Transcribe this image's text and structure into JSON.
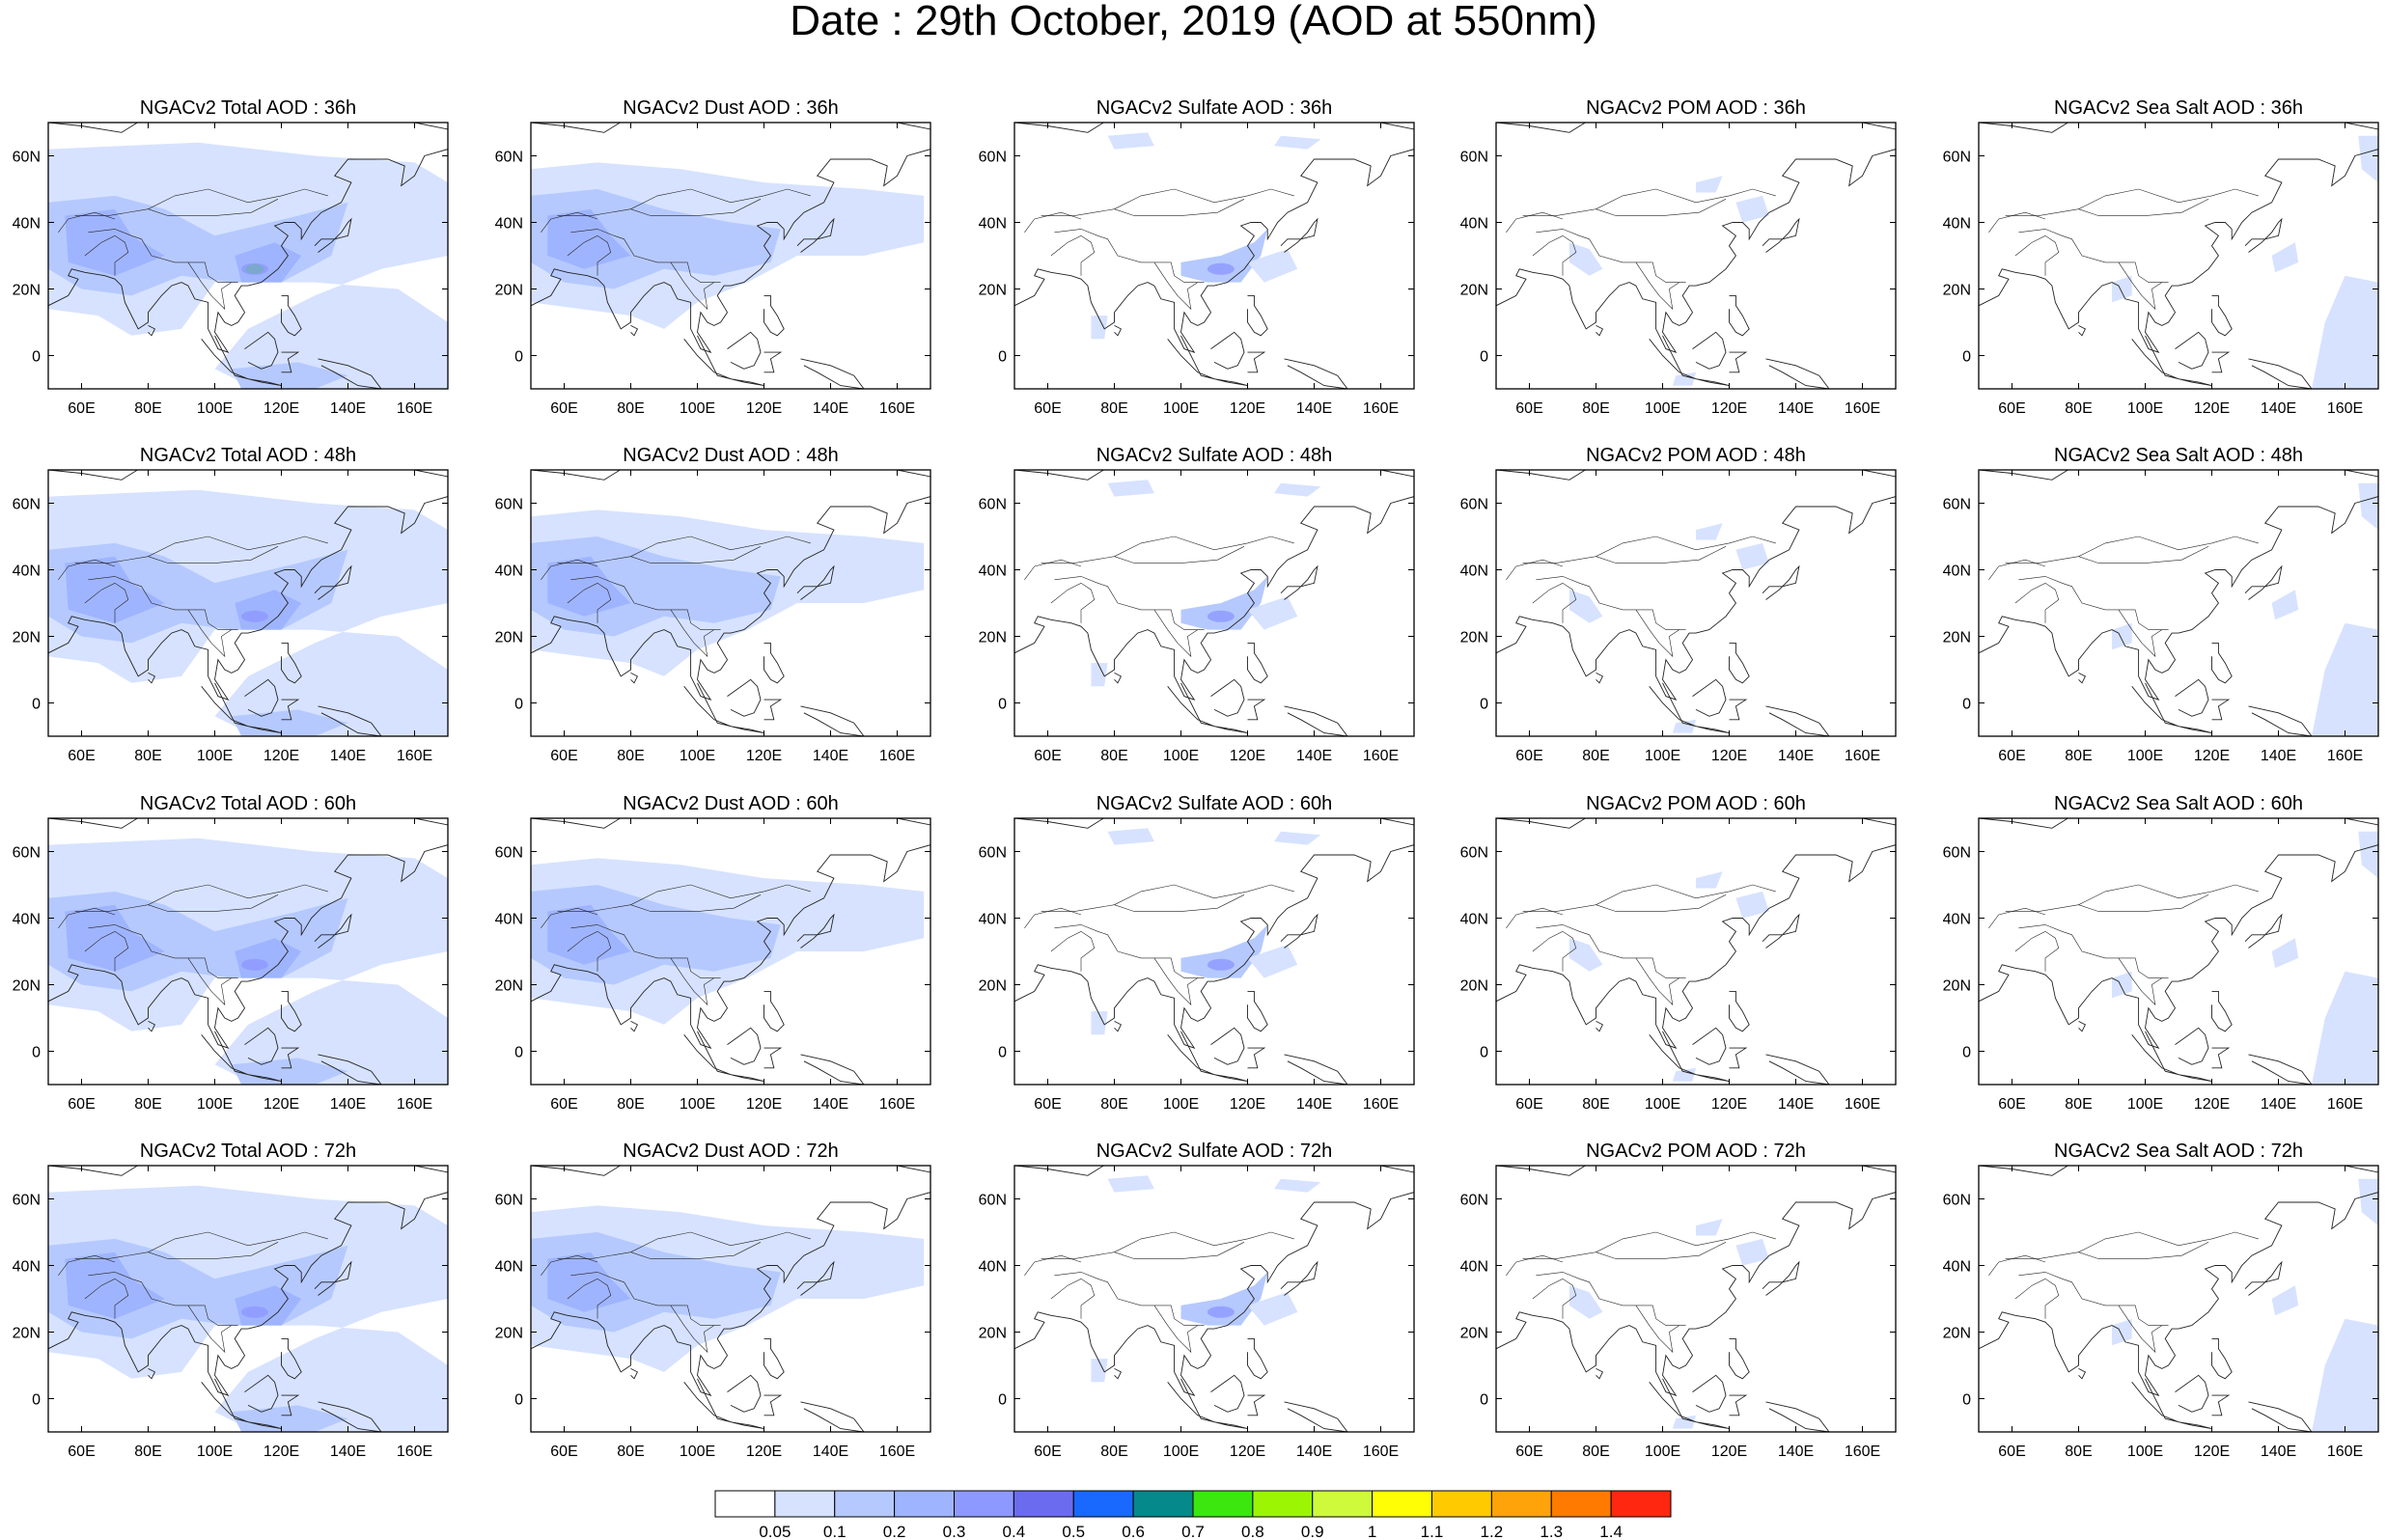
{
  "title": "Date : 29th October, 2019 (AOD at 550nm)",
  "panel_titles": [
    [
      "NGACv2 Total AOD : 36h",
      "NGACv2 Dust AOD : 36h",
      "NGACv2 Sulfate AOD : 36h",
      "NGACv2 POM AOD : 36h",
      "NGACv2 Sea Salt AOD : 36h"
    ],
    [
      "NGACv2 Total AOD : 48h",
      "NGACv2 Dust AOD : 48h",
      "NGACv2 Sulfate AOD : 48h",
      "NGACv2 POM AOD : 48h",
      "NGACv2 Sea Salt AOD : 48h"
    ],
    [
      "NGACv2 Total AOD : 60h",
      "NGACv2 Dust AOD : 60h",
      "NGACv2 Sulfate AOD : 60h",
      "NGACv2 POM AOD : 60h",
      "NGACv2 Sea Salt AOD : 60h"
    ],
    [
      "NGACv2 Total AOD : 72h",
      "NGACv2 Dust AOD : 72h",
      "NGACv2 Sulfate AOD : 72h",
      "NGACv2 POM AOD : 72h",
      "NGACv2 Sea Salt  AOD : 72h"
    ]
  ],
  "x_ticks": [
    "60E",
    "80E",
    "100E",
    "120E",
    "140E",
    "160E"
  ],
  "y_ticks": [
    "60N",
    "40N",
    "20N",
    "0"
  ],
  "colorbar": {
    "labels": [
      "0.05",
      "0.1",
      "0.2",
      "0.3",
      "0.4",
      "0.5",
      "0.6",
      "0.7",
      "0.8",
      "0.9",
      "1",
      "1.1",
      "1.2",
      "1.3",
      "1.4"
    ],
    "colors": [
      "#ffffff",
      "#d6e2ff",
      "#b5c9ff",
      "#9fb4ff",
      "#8e99ff",
      "#6b6bef",
      "#1968ff",
      "#05898a",
      "#3be70e",
      "#9cf603",
      "#cffa3b",
      "#fffe05",
      "#ffca00",
      "#ffa30a",
      "#ff7a00",
      "#ff2710"
    ]
  }
}
